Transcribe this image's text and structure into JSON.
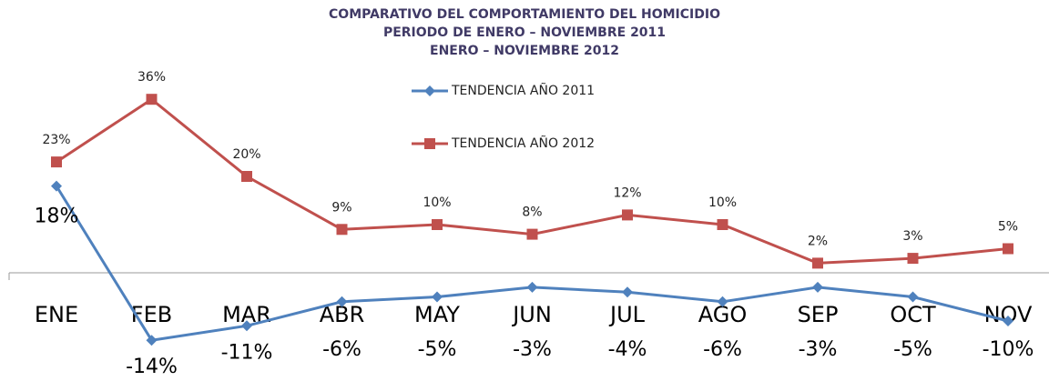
{
  "chart_data": {
    "type": "line",
    "title": [
      "COMPARATIVO DEL COMPORTAMIENTO  DEL HOMICIDIO",
      "PERIODO DE ENERO – NOVIEMBRE 2011",
      "ENERO – NOVIEMBRE 2012"
    ],
    "categories": [
      "ENE",
      "FEB",
      "MAR",
      "ABR",
      "MAY",
      "JUN",
      "JUL",
      "AGO",
      "SEP",
      "OCT",
      "NOV"
    ],
    "series": [
      {
        "name": "TENDENCIA AÑO 2011",
        "color": "#4f81bd",
        "marker": "diamond",
        "values": [
          18,
          -14,
          -11,
          -6,
          -5,
          -3,
          -4,
          -6,
          -3,
          -5,
          -10
        ],
        "value_labels": [
          "18%",
          "-14%",
          "-11%",
          "-6%",
          "-5%",
          "-3%",
          "-4%",
          "-6%",
          "-3%",
          "-5%",
          "-10%"
        ]
      },
      {
        "name": "TENDENCIA AÑO 2012",
        "color": "#c0504d",
        "marker": "square",
        "values": [
          23,
          36,
          20,
          9,
          10,
          8,
          12,
          10,
          2,
          3,
          5
        ],
        "value_labels": [
          "23%",
          "36%",
          "20%",
          "9%",
          "10%",
          "8%",
          "12%",
          "10%",
          "2%",
          "3%",
          "5%"
        ]
      }
    ],
    "ylim": [
      -20,
      40
    ],
    "legend": "top"
  }
}
